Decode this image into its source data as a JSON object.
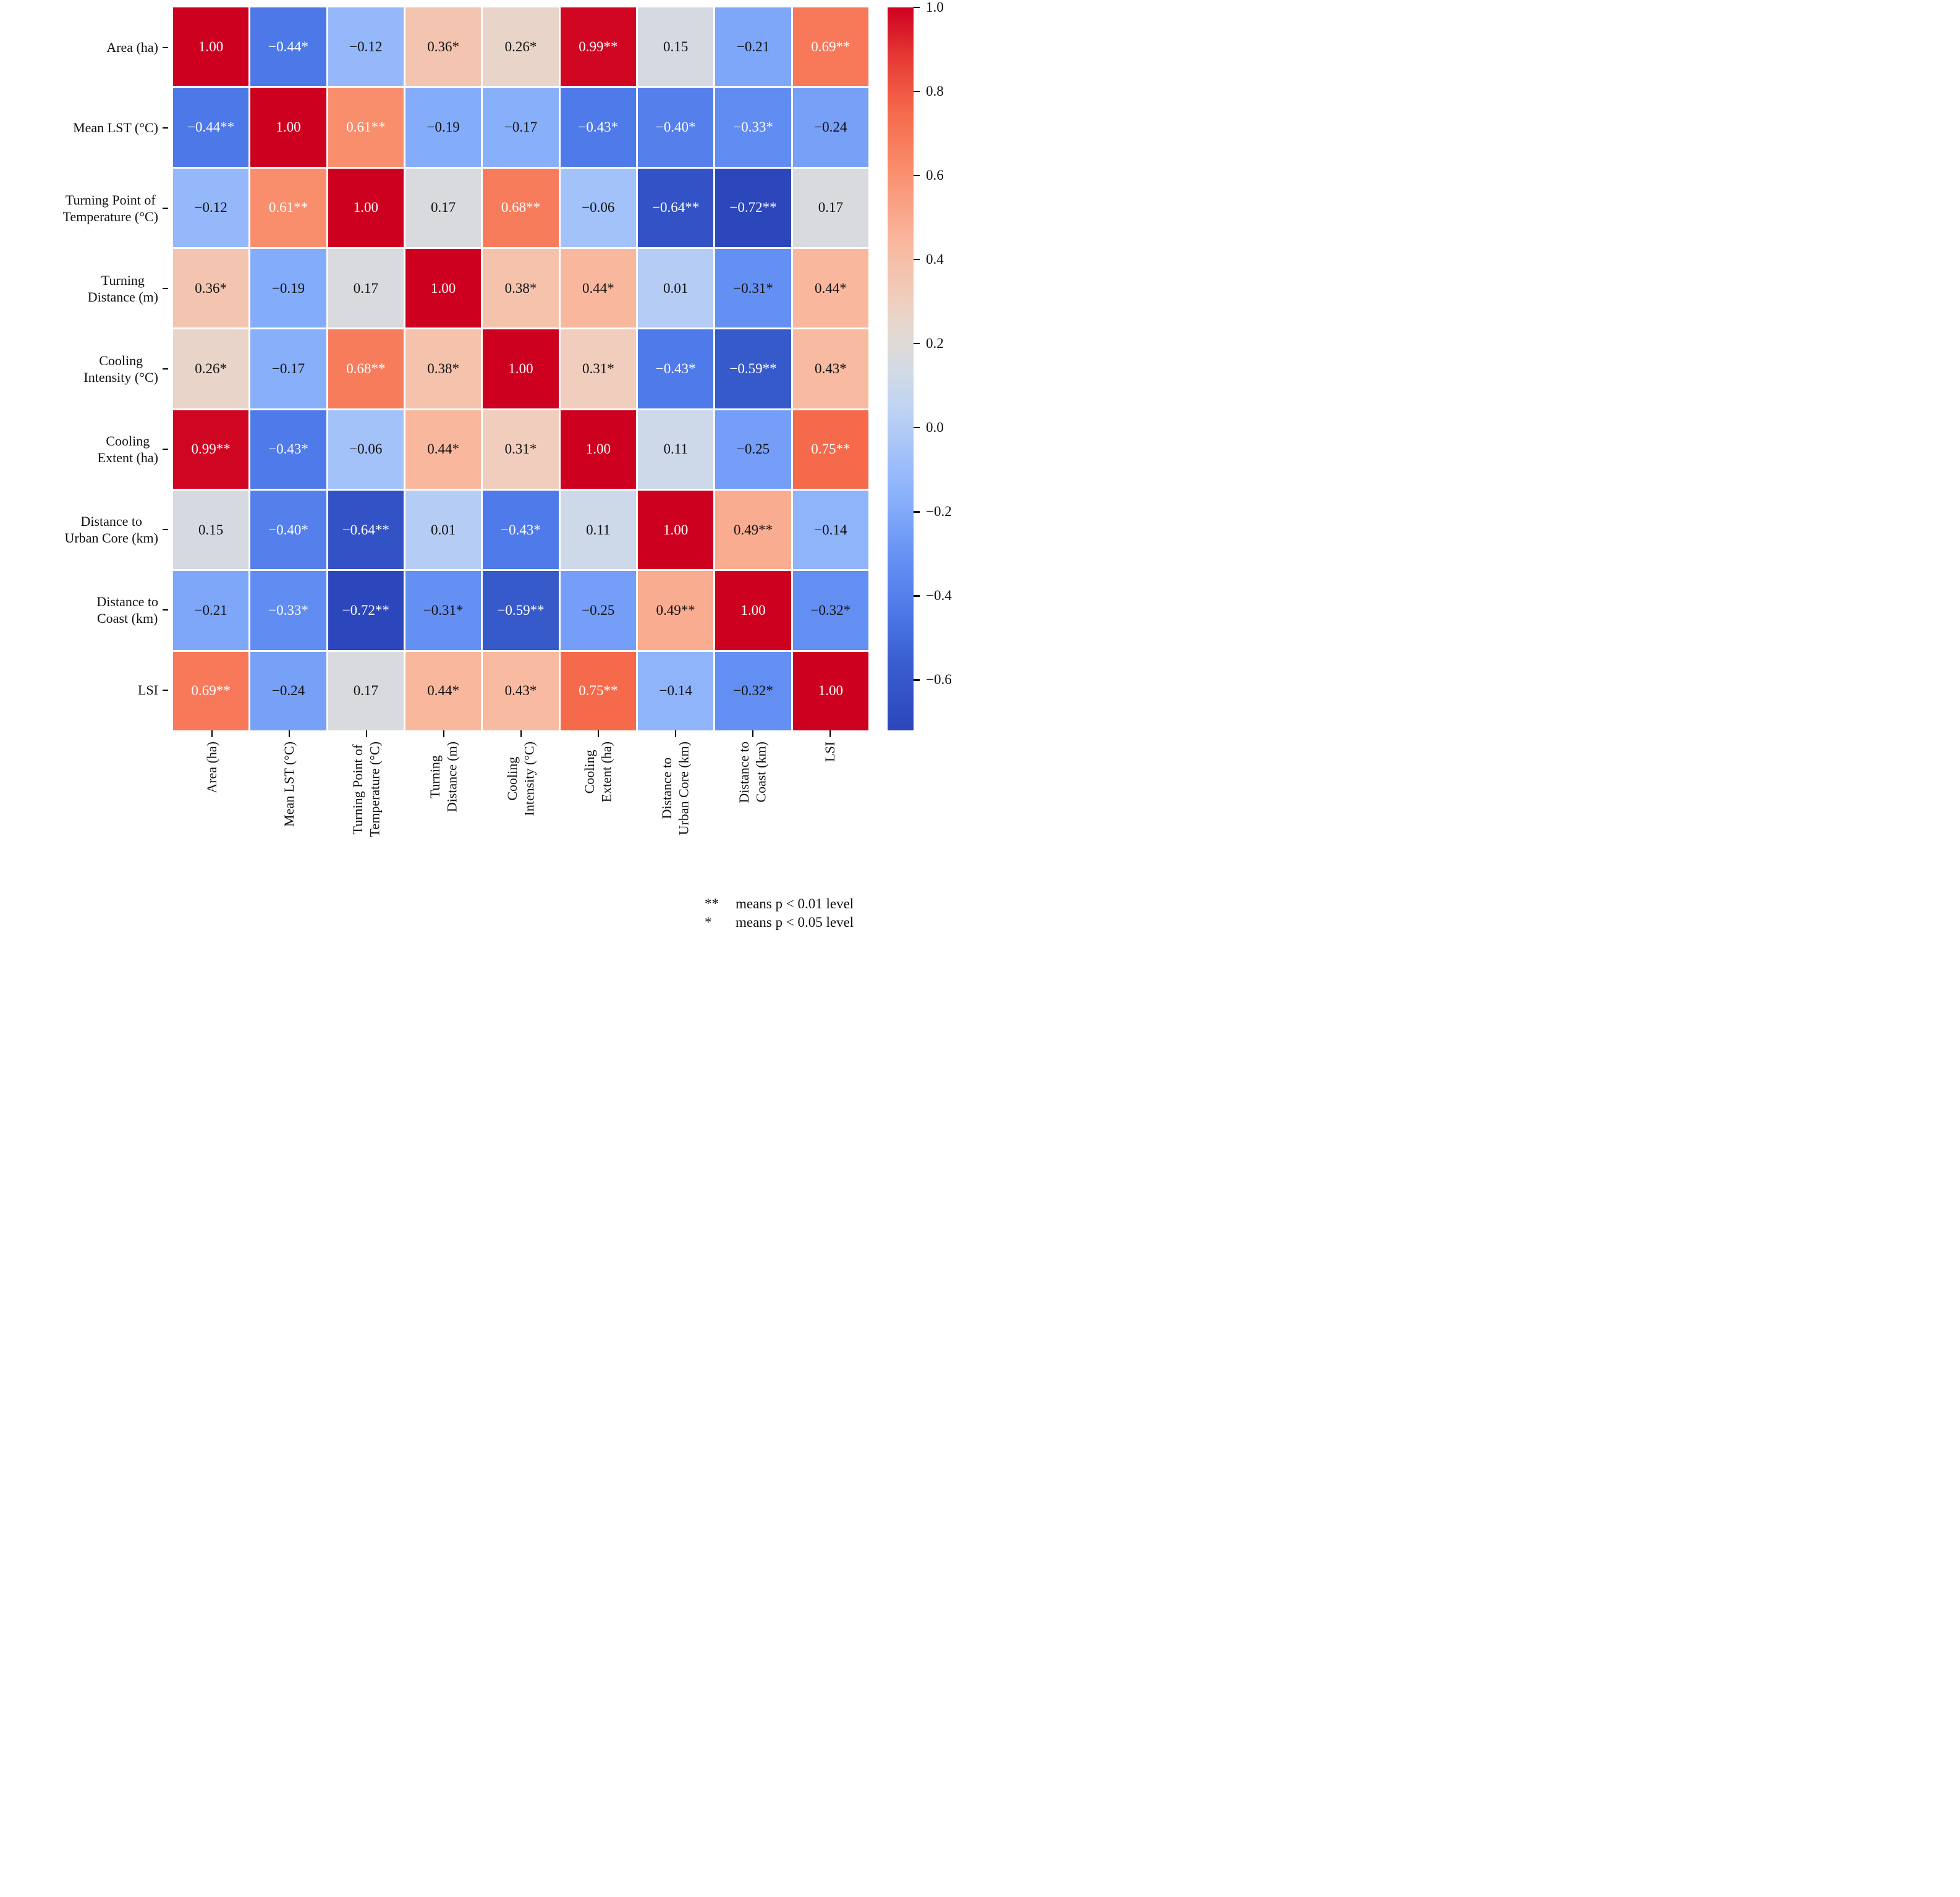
{
  "chart_data": {
    "type": "heatmap",
    "title": "",
    "variables": [
      "Area (ha)",
      "Mean LST (°C)",
      "Turning Point of\nTemperature (°C)",
      "Turning\nDistance (m)",
      "Cooling\nIntensity (°C)",
      "Cooling\nExtent (ha)",
      "Distance to\nUrban Core (km)",
      "Distance to\nCoast (km)",
      "LSI"
    ],
    "values": [
      [
        1.0,
        -0.44,
        -0.12,
        0.36,
        0.26,
        0.99,
        0.15,
        -0.21,
        0.69
      ],
      [
        -0.44,
        1.0,
        0.61,
        -0.19,
        -0.17,
        -0.43,
        -0.4,
        -0.33,
        -0.24
      ],
      [
        -0.12,
        0.61,
        1.0,
        0.17,
        0.68,
        -0.06,
        -0.64,
        -0.72,
        0.17
      ],
      [
        0.36,
        -0.19,
        0.17,
        1.0,
        0.38,
        0.44,
        0.01,
        -0.31,
        0.44
      ],
      [
        0.26,
        -0.17,
        0.68,
        0.38,
        1.0,
        0.31,
        -0.43,
        -0.59,
        0.43
      ],
      [
        0.99,
        -0.43,
        -0.06,
        0.44,
        0.31,
        1.0,
        0.11,
        -0.25,
        0.75
      ],
      [
        0.15,
        -0.4,
        -0.64,
        0.01,
        -0.43,
        0.11,
        1.0,
        0.49,
        -0.14
      ],
      [
        -0.21,
        -0.33,
        -0.72,
        -0.31,
        -0.59,
        -0.25,
        0.49,
        1.0,
        -0.32
      ],
      [
        0.69,
        -0.24,
        0.17,
        0.44,
        0.43,
        0.75,
        -0.14,
        -0.32,
        1.0
      ]
    ],
    "significance": [
      [
        "",
        "*",
        "",
        "*",
        "*",
        "**",
        "",
        "",
        "**"
      ],
      [
        "**",
        "",
        "**",
        "",
        "",
        "*",
        "*",
        "*",
        ""
      ],
      [
        "",
        "**",
        "",
        "",
        "**",
        "",
        "**",
        "**",
        ""
      ],
      [
        "*",
        "",
        "",
        "",
        "*",
        "*",
        "",
        "*",
        "*"
      ],
      [
        "*",
        "",
        "**",
        "*",
        "",
        "*",
        "*",
        "**",
        "*"
      ],
      [
        "**",
        "*",
        "",
        "*",
        "*",
        "",
        "",
        "",
        "**"
      ],
      [
        "",
        "*",
        "**",
        "",
        "*",
        "",
        "",
        "**",
        ""
      ],
      [
        "",
        "*",
        "**",
        "*",
        "**",
        "",
        "**",
        "",
        "*"
      ],
      [
        "**",
        "",
        "",
        "*",
        "*",
        "**",
        "",
        "*",
        ""
      ]
    ],
    "colorbar": {
      "vmin": -0.72,
      "vmax": 1.0,
      "tick_values": [
        1.0,
        0.8,
        0.6,
        0.4,
        0.2,
        0.0,
        -0.2,
        -0.4,
        -0.6
      ],
      "tick_labels": [
        "1.0",
        "0.8",
        "0.6",
        "0.4",
        "0.2",
        "0.0",
        "−0.2",
        "−0.4",
        "−0.6"
      ]
    },
    "colormap_anchors": [
      {
        "v": -0.72,
        "color": "#2C46BB"
      },
      {
        "v": -0.55,
        "color": "#3A60D0"
      },
      {
        "v": -0.43,
        "color": "#4F7AE9"
      },
      {
        "v": -0.31,
        "color": "#6590F3"
      },
      {
        "v": -0.19,
        "color": "#83ACFA"
      },
      {
        "v": -0.06,
        "color": "#A3C2F9"
      },
      {
        "v": 0.05,
        "color": "#C0D4F3"
      },
      {
        "v": 0.14,
        "color": "#D3DAE4"
      },
      {
        "v": 0.22,
        "color": "#E2DAD3"
      },
      {
        "v": 0.31,
        "color": "#F0CDBC"
      },
      {
        "v": 0.44,
        "color": "#F9B89E"
      },
      {
        "v": 0.61,
        "color": "#F98E6D"
      },
      {
        "v": 0.75,
        "color": "#F56A4B"
      },
      {
        "v": 0.88,
        "color": "#E73A35"
      },
      {
        "v": 1.0,
        "color": "#CE0020"
      }
    ],
    "text_colors": {
      "light": "#ffffff",
      "dark": "#111111",
      "white_text_center": 0.14,
      "white_text_radius": 0.465
    },
    "footnotes": [
      {
        "symbol": "**",
        "text": "means p < 0.01 level"
      },
      {
        "symbol": "*",
        "text": "means p < 0.05 level"
      }
    ],
    "layout": {
      "grid_on": false,
      "legend_position": "right-colorbar"
    }
  }
}
